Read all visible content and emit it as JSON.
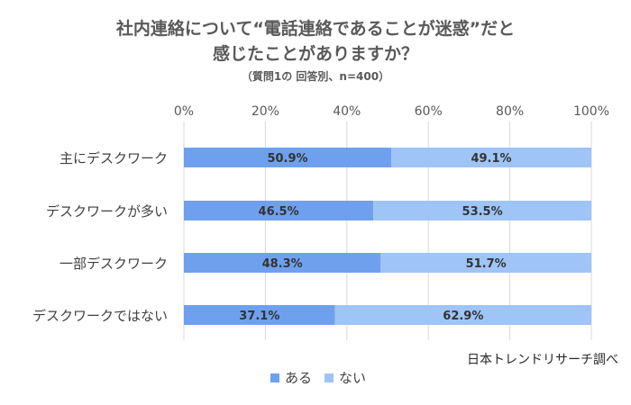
{
  "colors": {
    "series1": "#6fa0ee",
    "series2": "#9fc4f6",
    "grid": "#d9d9d9",
    "text": "#595959"
  },
  "chart_data": {
    "type": "bar",
    "orientation": "horizontal",
    "stacked": true,
    "title": [
      "社内連絡について“電話連絡であることが迷惑”だと",
      "感じたことがありますか？"
    ],
    "subtitle": "（質問1の 回答別、n=400）",
    "categories": [
      "主にデスクワーク",
      "デスクワークが多い",
      "一部デスクワーク",
      "デスクワークではない"
    ],
    "series": [
      {
        "name": "ある",
        "values": [
          50.9,
          46.5,
          48.3,
          37.1
        ],
        "labels": [
          "50.9%",
          "46.5%",
          "48.3%",
          "37.1%"
        ]
      },
      {
        "name": "ない",
        "values": [
          49.1,
          53.5,
          51.7,
          62.9
        ],
        "labels": [
          "49.1%",
          "53.5%",
          "51.7%",
          "62.9%"
        ]
      }
    ],
    "xlim": [
      0,
      100
    ],
    "xticks": [
      "0%",
      "20%",
      "40%",
      "60%",
      "80%",
      "100%"
    ],
    "grid": true,
    "legend_position": "bottom",
    "source": "日本トレンドリサーチ調べ"
  }
}
